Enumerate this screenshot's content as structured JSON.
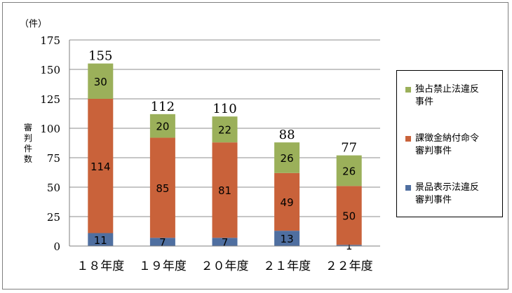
{
  "chart_data": {
    "type": "bar",
    "stacked": true,
    "categories": [
      "１８年度",
      "１９年度",
      "２０年度",
      "２１年度",
      "２２年度"
    ],
    "series": [
      {
        "name": "景品表示法違反\n審判事件",
        "color": "#4f6fa0",
        "values": [
          11,
          7,
          7,
          13,
          1
        ]
      },
      {
        "name": "課徴金納付命令\n審判事件",
        "color": "#c9623a",
        "values": [
          114,
          85,
          81,
          49,
          50
        ]
      },
      {
        "name": "独占禁止法違反\n事件",
        "color": "#9bb05a",
        "values": [
          30,
          20,
          22,
          26,
          26
        ]
      }
    ],
    "totals": [
      155,
      112,
      110,
      88,
      77
    ],
    "y_unit": "（件）",
    "ylabel": "審判件数",
    "ylim": [
      0,
      175
    ],
    "yticks": [
      0,
      25,
      50,
      75,
      100,
      125,
      150,
      175
    ],
    "grid": true,
    "legend_position": "right"
  }
}
